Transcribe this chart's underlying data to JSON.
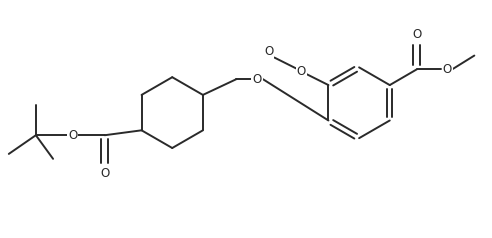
{
  "bg_color": "#ffffff",
  "line_color": "#2a2a2a",
  "line_width": 1.4,
  "font_size": 8.5,
  "figsize": [
    4.92,
    2.38
  ],
  "dpi": 100,
  "xlim": [
    0,
    10
  ],
  "ylim": [
    0,
    4.84
  ]
}
